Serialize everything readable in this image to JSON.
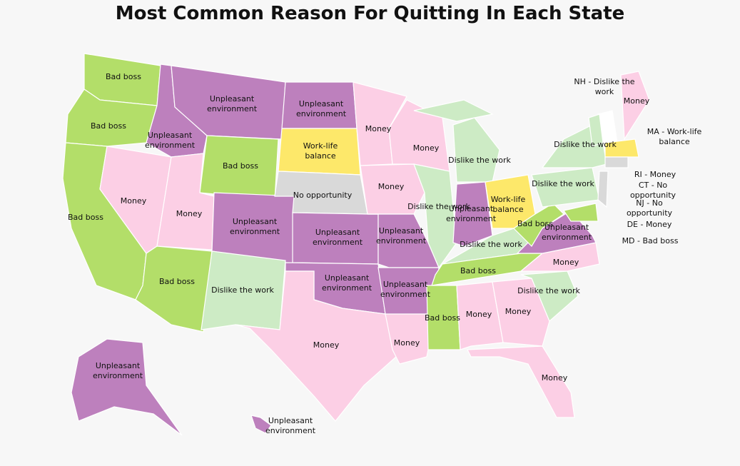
{
  "title": "Most Common Reason For Quitting In Each State",
  "regions": [
    {
      "label": "Bad boss",
      "color": "#b3de69"
    },
    {
      "label": "Bad boss",
      "color": "#b3de69"
    },
    {
      "label": "Bad boss",
      "color": "#b3de69"
    },
    {
      "label": "Money",
      "color": "#fccfe5"
    },
    {
      "label": "Unpleasant environment",
      "color": "#bd80bd"
    },
    {
      "label": "Unpleasant environment",
      "color": "#bd80bd"
    },
    {
      "label": "Bad boss",
      "color": "#b3de69"
    },
    {
      "label": "Money",
      "color": "#fccfe5"
    },
    {
      "label": "Bad boss",
      "color": "#b3de69"
    },
    {
      "label": "Unpleasant environment",
      "color": "#bd80bd"
    },
    {
      "label": "Dislike the work",
      "color": "#cdebc5"
    },
    {
      "label": "Unpleasant environment",
      "color": "#bd80bd"
    },
    {
      "label": "Work-life balance",
      "color": "#fde86a"
    },
    {
      "label": "No opportunity",
      "color": "#d9d9d9"
    },
    {
      "label": "Unpleasant environment",
      "color": "#bd80bd"
    },
    {
      "label": "Unpleasant environment",
      "color": "#bd80bd"
    },
    {
      "label": "Money",
      "color": "#fccfe5"
    },
    {
      "label": "Money",
      "color": "#fccfe5"
    },
    {
      "label": "Money",
      "color": "#fccfe5"
    },
    {
      "label": "Unpleasant environment",
      "color": "#bd80bd"
    },
    {
      "label": "Unpleasant environment",
      "color": "#bd80bd"
    },
    {
      "label": "Money",
      "color": "#fccfe5"
    },
    {
      "label": "Money",
      "color": "#fccfe5"
    },
    {
      "label": "Dislike the work",
      "color": "#cdebc5"
    },
    {
      "label": "Dislike the work",
      "color": "#cdebc5"
    },
    {
      "label": "Unpleasant environment",
      "color": "#bd80bd"
    },
    {
      "label": "Work-life balance",
      "color": "#fde86a"
    },
    {
      "label": "Dislike the work",
      "color": "#cdebc5"
    },
    {
      "label": "Bad boss",
      "color": "#b3de69"
    },
    {
      "label": "Bad boss",
      "color": "#b3de69"
    },
    {
      "label": "Money",
      "color": "#fccfe5"
    },
    {
      "label": "Money",
      "color": "#fccfe5"
    },
    {
      "label": "Money",
      "color": "#fccfe5"
    },
    {
      "label": "Dislike the work",
      "color": "#cdebc5"
    },
    {
      "label": "Money",
      "color": "#fccfe5"
    },
    {
      "label": "Unpleasant environment",
      "color": "#bd80bd"
    },
    {
      "label": "Bad boss",
      "color": "#b3de69"
    },
    {
      "label": "Dislike the work",
      "color": "#cdebc5"
    },
    {
      "label": "Dislike the work",
      "color": "#cdebc5"
    },
    {
      "label": "Money",
      "color": "#fccfe5"
    },
    {
      "label": "Unpleasant environment",
      "color": "#bd80bd"
    },
    {
      "label": "Unpleasant environment",
      "color": "#bd80bd"
    },
    {
      "color": "#ffffff"
    },
    {
      "color": "#cdebc5"
    },
    {
      "color": "#fde86a"
    },
    {
      "color": "#d9d9d9"
    },
    {
      "color": "#d9d9d9"
    },
    {
      "color": "#b3de69"
    },
    {
      "color": "#cdebc5"
    }
  ],
  "callouts": [
    "NH - Dislike the work",
    "MA - Work-life balance",
    "RI - Money",
    "CT - No opportunity",
    "NJ - No opportunity",
    "DE - Money",
    "MD - Bad boss"
  ]
}
